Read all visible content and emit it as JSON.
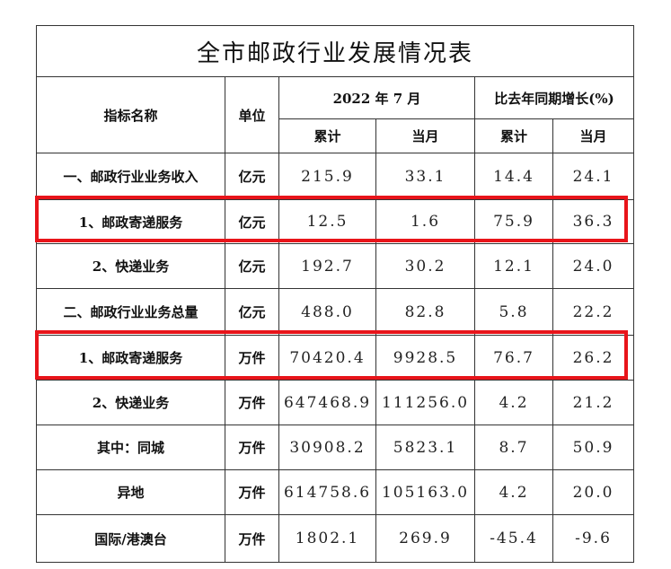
{
  "title": "全市邮政行业发展情况表",
  "header": {
    "name": "指标名称",
    "unit": "单位",
    "period": "2022 年 7 月",
    "growth": "比去年同期增长(%)",
    "sub": [
      "累计",
      "当月",
      "累计",
      "当月"
    ]
  },
  "table": {
    "rows": [
      [
        "一、邮政行业业务收入",
        "亿元",
        "215.9",
        "33.1",
        "14.4",
        "24.1"
      ],
      [
        "1、邮政寄递服务",
        "亿元",
        "12.5",
        "1.6",
        "75.9",
        "36.3"
      ],
      [
        "2、快递业务",
        "亿元",
        "192.7",
        "30.2",
        "12.1",
        "24.0"
      ],
      [
        "二、邮政行业业务总量",
        "亿元",
        "488.0",
        "82.8",
        "5.8",
        "22.2"
      ],
      [
        "1、邮政寄递服务",
        "万件",
        "70420.4",
        "9928.5",
        "76.7",
        "26.2"
      ],
      [
        "2、快递业务",
        "万件",
        "647468.9",
        "111256.0",
        "4.2",
        "21.2"
      ],
      [
        "其中：同城",
        "万件",
        "30908.2",
        "5823.1",
        "8.7",
        "50.9"
      ],
      [
        "异地",
        "万件",
        "614758.6",
        "105163.0",
        "4.2",
        "20.0"
      ],
      [
        "国际/港澳台",
        "万件",
        "1802.1",
        "269.9",
        "-45.4",
        "-9.6"
      ]
    ]
  }
}
